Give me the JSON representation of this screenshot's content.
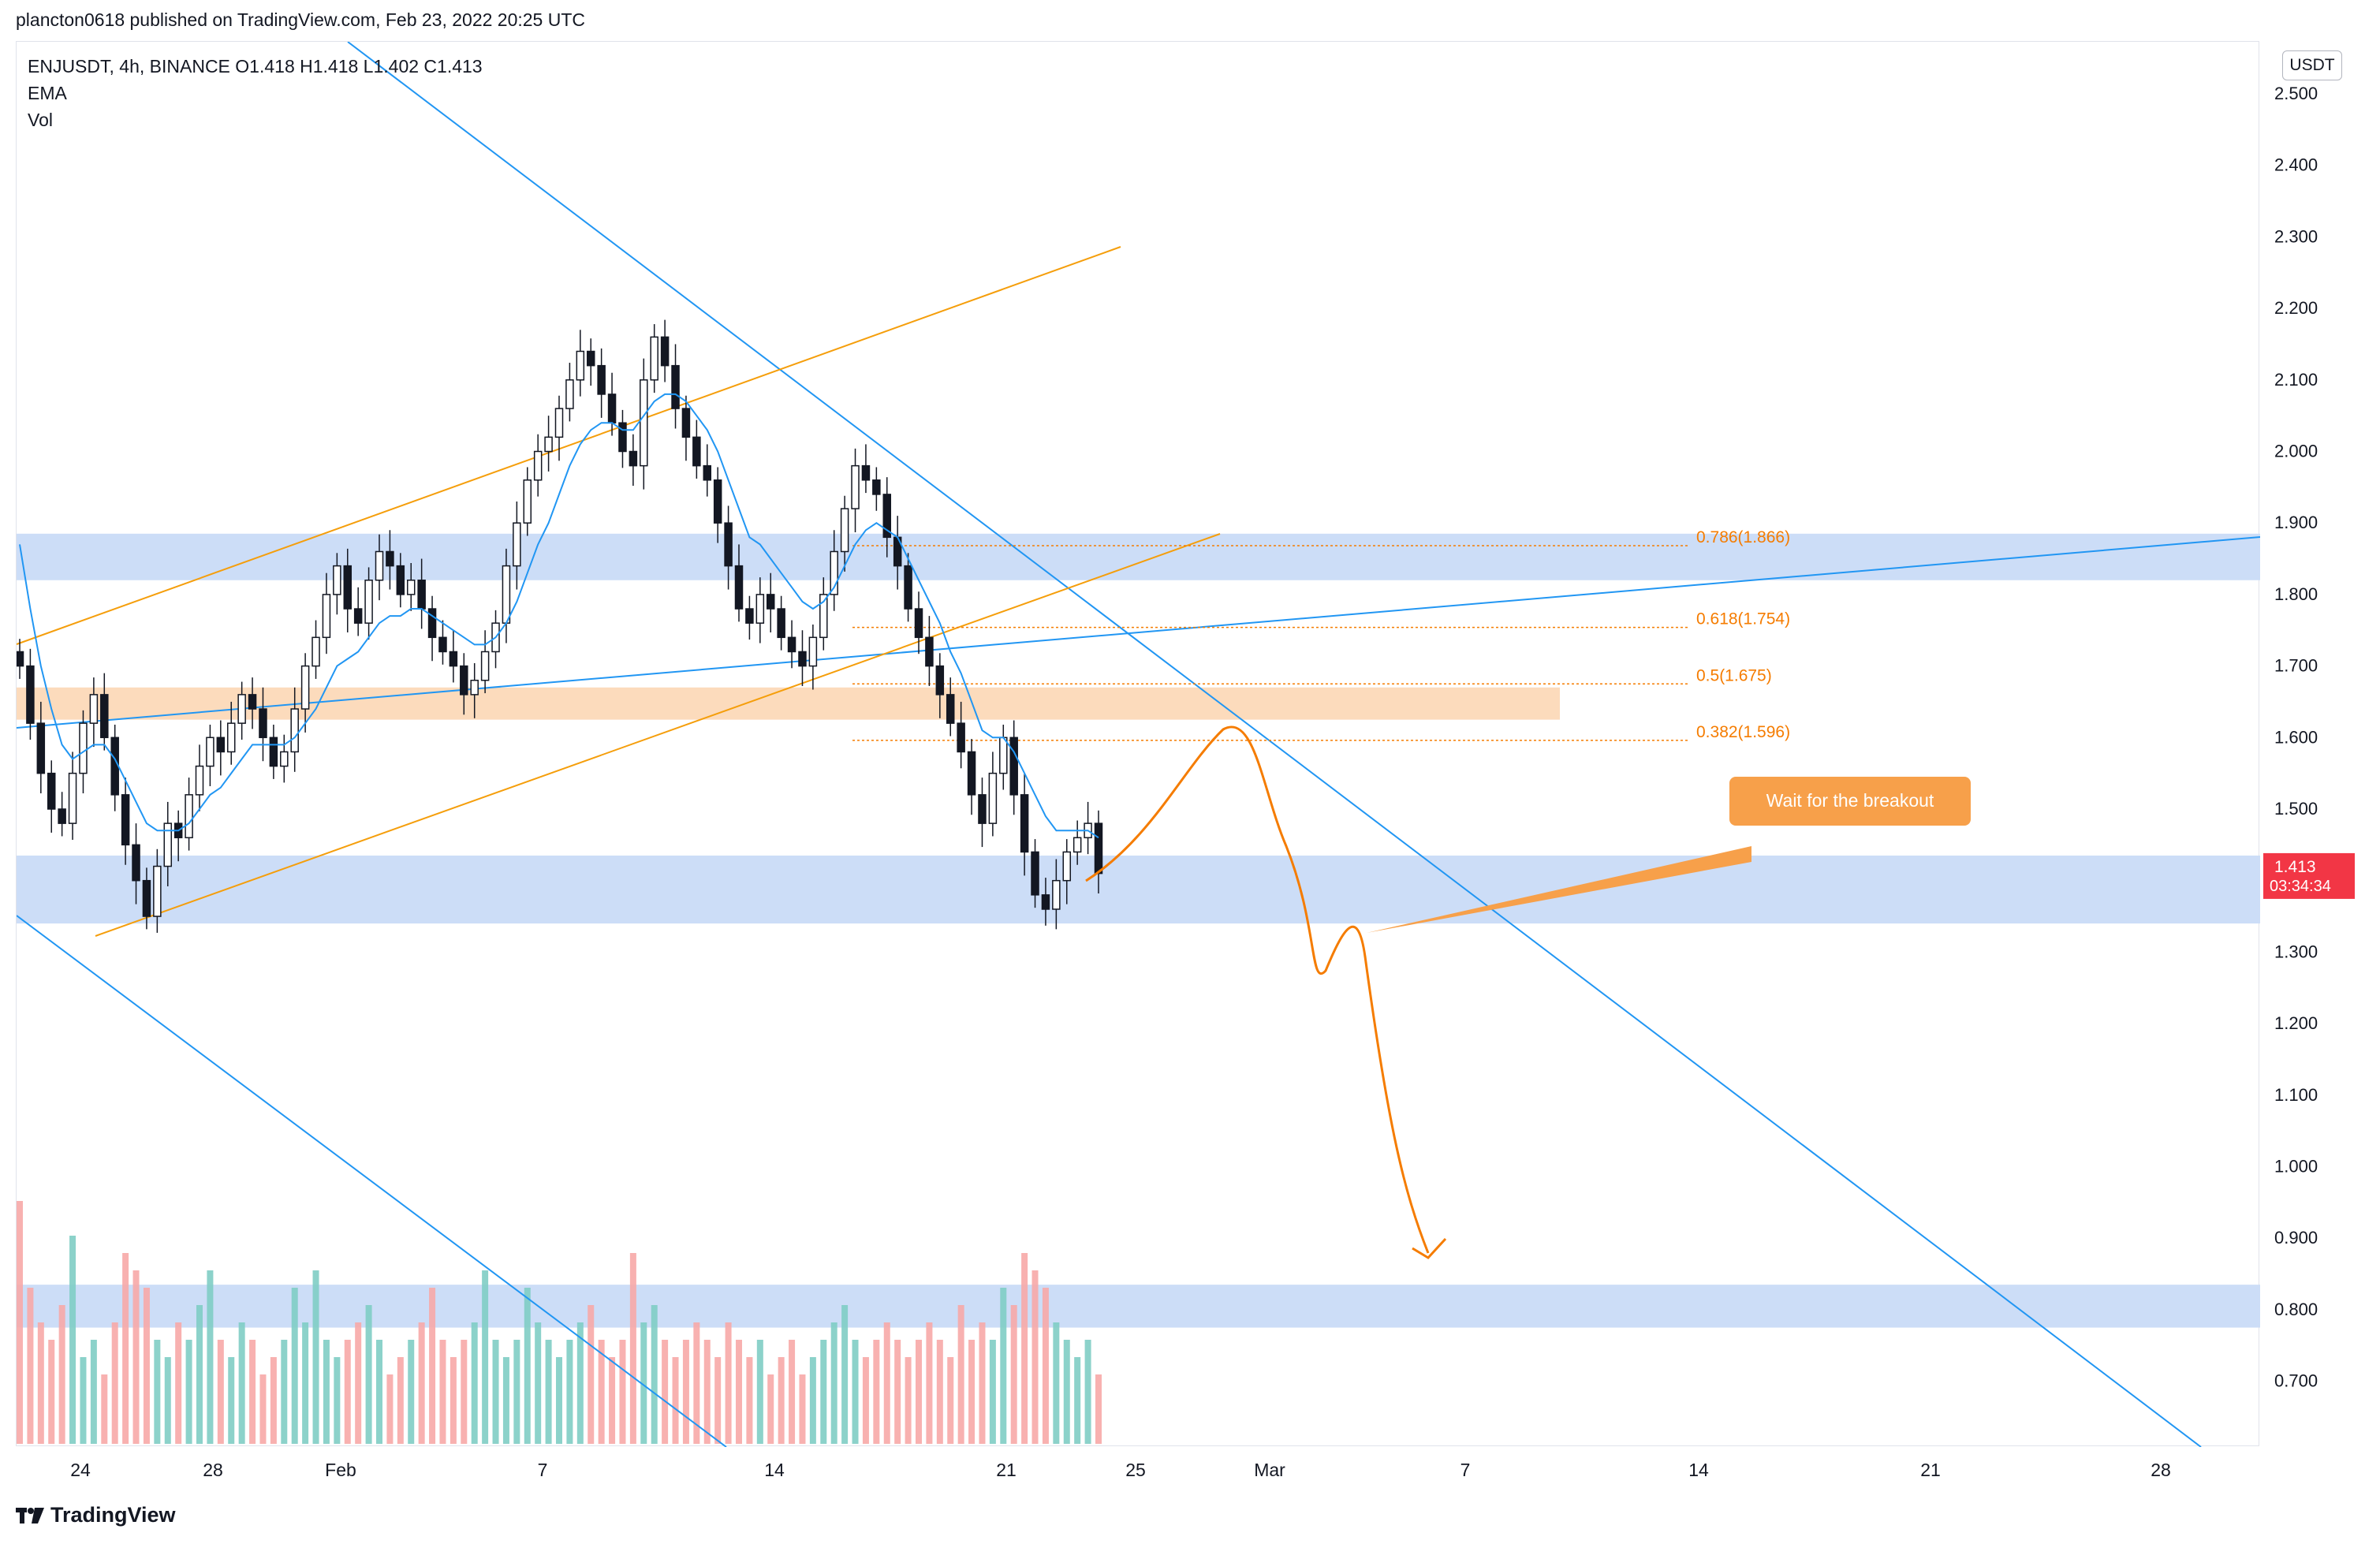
{
  "header": {
    "text": "plancton0618 published on TradingView.com, Feb 23, 2022 20:25 UTC"
  },
  "legend": {
    "symbol_line": "ENJUSDT, 4h, BINANCE  O1.418  H1.418  L1.402  C1.413",
    "ema": "EMA",
    "vol": "Vol"
  },
  "price_axis": {
    "currency": "USDT",
    "ticks": [
      "2.500",
      "2.400",
      "2.300",
      "2.200",
      "2.100",
      "2.000",
      "1.900",
      "1.800",
      "1.700",
      "1.600",
      "1.500",
      "1.300",
      "1.200",
      "1.100",
      "1.000",
      "0.900",
      "0.800",
      "0.700"
    ],
    "last_price": "1.413",
    "countdown": "03:34:34",
    "last_price_color": "#f23645"
  },
  "time_axis": {
    "labels": [
      "24",
      "28",
      "Feb",
      "7",
      "14",
      "21",
      "25",
      "Mar",
      "7",
      "14",
      "21",
      "28"
    ]
  },
  "fib_levels": [
    "0.786(1.866)",
    "0.618(1.754)",
    "0.5(1.675)",
    "0.382(1.596)"
  ],
  "annotation": {
    "text": "Wait for the breakout",
    "color": "#f7a04a"
  },
  "footer": {
    "brand": "TradingView"
  },
  "colors": {
    "up": "#26a69a",
    "down": "#ef5350",
    "candle_body": "#131722",
    "ema": "#2196f3",
    "orange": "#f57c00",
    "zone_blue": "#c9dbf7",
    "zone_orange": "#fcd9b8"
  },
  "chart_data": {
    "type": "candlestick",
    "symbol": "ENJUSDT",
    "interval": "4h",
    "exchange": "BINANCE",
    "ohlc_last": {
      "open": 1.418,
      "high": 1.418,
      "low": 1.402,
      "close": 1.413
    },
    "y_range": [
      0.62,
      2.55
    ],
    "candles_close_approx": [
      1.7,
      1.62,
      1.55,
      1.5,
      1.48,
      1.55,
      1.62,
      1.66,
      1.6,
      1.52,
      1.45,
      1.4,
      1.35,
      1.42,
      1.48,
      1.46,
      1.52,
      1.56,
      1.6,
      1.58,
      1.62,
      1.66,
      1.64,
      1.6,
      1.56,
      1.58,
      1.64,
      1.7,
      1.74,
      1.8,
      1.84,
      1.78,
      1.76,
      1.82,
      1.86,
      1.84,
      1.8,
      1.82,
      1.78,
      1.74,
      1.72,
      1.7,
      1.66,
      1.68,
      1.72,
      1.76,
      1.84,
      1.9,
      1.96,
      2.0,
      2.02,
      2.06,
      2.1,
      2.14,
      2.12,
      2.08,
      2.04,
      2.0,
      1.98,
      2.1,
      2.16,
      2.12,
      2.06,
      2.02,
      1.98,
      1.96,
      1.9,
      1.84,
      1.78,
      1.76,
      1.8,
      1.78,
      1.74,
      1.72,
      1.7,
      1.74,
      1.8,
      1.86,
      1.92,
      1.98,
      1.96,
      1.94,
      1.88,
      1.84,
      1.78,
      1.74,
      1.7,
      1.66,
      1.62,
      1.58,
      1.52,
      1.48,
      1.55,
      1.6,
      1.52,
      1.44,
      1.38,
      1.36,
      1.4,
      1.44,
      1.46,
      1.48,
      1.41
    ],
    "ema_approx": [
      1.87,
      1.78,
      1.7,
      1.64,
      1.59,
      1.57,
      1.58,
      1.59,
      1.59,
      1.57,
      1.54,
      1.51,
      1.48,
      1.47,
      1.47,
      1.47,
      1.48,
      1.5,
      1.52,
      1.53,
      1.55,
      1.57,
      1.59,
      1.59,
      1.59,
      1.59,
      1.6,
      1.62,
      1.64,
      1.67,
      1.7,
      1.71,
      1.72,
      1.74,
      1.76,
      1.77,
      1.77,
      1.78,
      1.78,
      1.77,
      1.76,
      1.75,
      1.74,
      1.73,
      1.73,
      1.74,
      1.76,
      1.79,
      1.83,
      1.87,
      1.9,
      1.94,
      1.98,
      2.01,
      2.03,
      2.04,
      2.04,
      2.03,
      2.03,
      2.05,
      2.07,
      2.08,
      2.08,
      2.07,
      2.05,
      2.03,
      2.0,
      1.96,
      1.92,
      1.88,
      1.87,
      1.85,
      1.83,
      1.81,
      1.79,
      1.78,
      1.79,
      1.81,
      1.84,
      1.87,
      1.89,
      1.9,
      1.89,
      1.88,
      1.85,
      1.82,
      1.79,
      1.76,
      1.72,
      1.69,
      1.65,
      1.61,
      1.6,
      1.6,
      1.58,
      1.55,
      1.52,
      1.49,
      1.47,
      1.47,
      1.47,
      1.47,
      1.46
    ],
    "volume_approx": [
      0.7,
      0.45,
      0.35,
      0.3,
      0.4,
      0.6,
      0.25,
      0.3,
      0.2,
      0.35,
      0.55,
      0.5,
      0.45,
      0.3,
      0.25,
      0.35,
      0.3,
      0.4,
      0.5,
      0.3,
      0.25,
      0.35,
      0.3,
      0.2,
      0.25,
      0.3,
      0.45,
      0.35,
      0.5,
      0.3,
      0.25,
      0.3,
      0.35,
      0.4,
      0.3,
      0.2,
      0.25,
      0.3,
      0.35,
      0.45,
      0.3,
      0.25,
      0.3,
      0.35,
      0.5,
      0.3,
      0.25,
      0.3,
      0.45,
      0.35,
      0.3,
      0.25,
      0.3,
      0.35,
      0.4,
      0.3,
      0.25,
      0.3,
      0.55,
      0.35,
      0.4,
      0.3,
      0.25,
      0.3,
      0.35,
      0.3,
      0.25,
      0.35,
      0.3,
      0.25,
      0.3,
      0.2,
      0.25,
      0.3,
      0.2,
      0.25,
      0.3,
      0.35,
      0.4,
      0.3,
      0.25,
      0.3,
      0.35,
      0.3,
      0.25,
      0.3,
      0.35,
      0.3,
      0.25,
      0.4,
      0.3,
      0.35,
      0.3,
      0.45,
      0.4,
      0.55,
      0.5,
      0.45,
      0.35,
      0.3,
      0.25,
      0.3,
      0.2
    ],
    "fibonacci": [
      {
        "ratio": 0.786,
        "price": 1.866
      },
      {
        "ratio": 0.618,
        "price": 1.754
      },
      {
        "ratio": 0.5,
        "price": 1.675
      },
      {
        "ratio": 0.382,
        "price": 1.596
      }
    ],
    "zones": [
      {
        "low": 1.82,
        "high": 1.885,
        "color": "blue"
      },
      {
        "low": 1.625,
        "high": 1.67,
        "color": "orange"
      },
      {
        "low": 1.34,
        "high": 1.435,
        "color": "blue"
      },
      {
        "low": 0.775,
        "high": 0.835,
        "color": "blue"
      }
    ],
    "projection_path_prices": [
      1.42,
      1.5,
      1.6,
      1.45,
      1.27,
      1.35,
      1.2,
      0.89
    ]
  }
}
